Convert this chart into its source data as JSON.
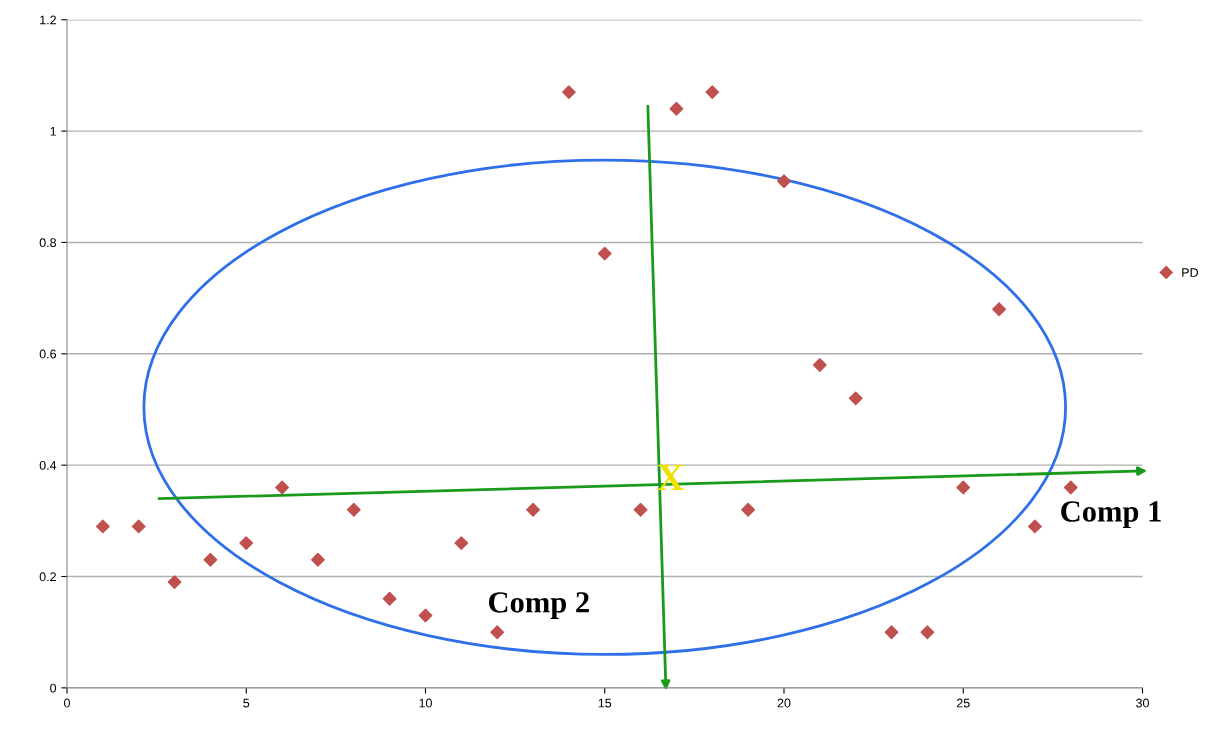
{
  "chart_data": {
    "type": "scatter",
    "x": [
      1,
      2,
      3,
      4,
      5,
      6,
      7,
      8,
      9,
      10,
      11,
      12,
      13,
      14,
      15,
      16,
      17,
      18,
      19,
      20,
      21,
      22,
      23,
      24,
      25,
      26,
      27,
      28
    ],
    "series": [
      {
        "name": "PD",
        "color": "#c0504d",
        "values": [
          0.29,
          0.29,
          0.19,
          0.23,
          0.26,
          0.36,
          0.23,
          0.32,
          0.16,
          0.13,
          0.26,
          0.1,
          0.32,
          1.07,
          0.78,
          0.32,
          1.04,
          1.07,
          0.32,
          0.91,
          0.58,
          0.52,
          0.1,
          0.1,
          0.36,
          0.68,
          0.29,
          0.36
        ]
      }
    ],
    "xlim": [
      0,
      30
    ],
    "xticks": [
      0,
      5,
      10,
      15,
      20,
      25,
      30
    ],
    "ylim": [
      0,
      1.2
    ],
    "yticks": [
      0,
      0.2,
      0.4,
      0.6,
      0.8,
      1,
      1.2
    ],
    "grid": "y",
    "legend": "right",
    "marker": "diamond",
    "annotations": [
      "Comp 1",
      "Comp 2",
      "X"
    ]
  }
}
